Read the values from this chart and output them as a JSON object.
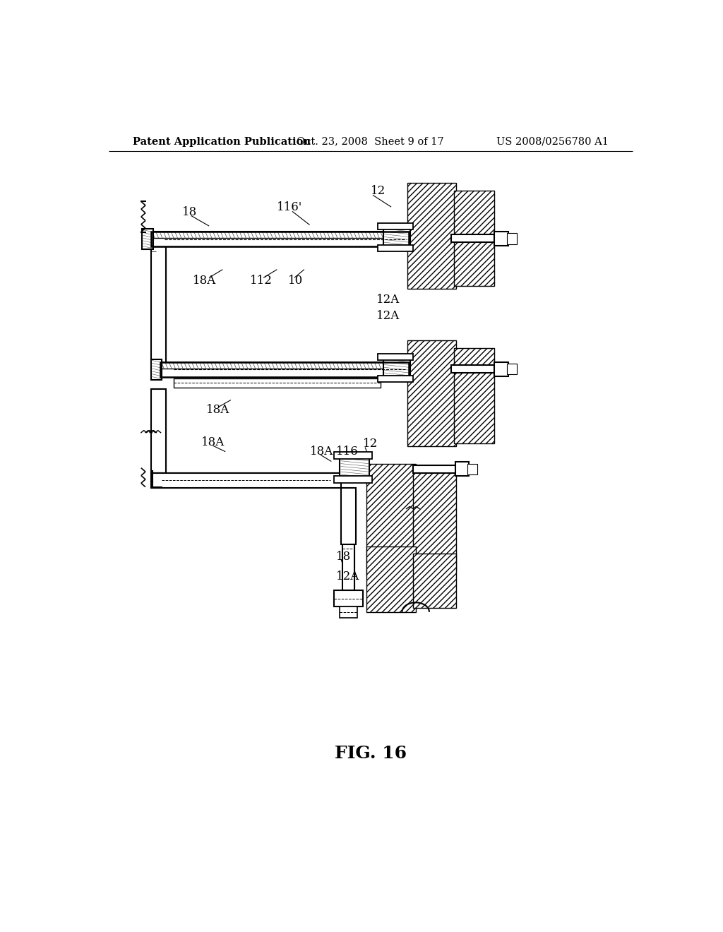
{
  "header_left": "Patent Application Publication",
  "header_center": "Oct. 23, 2008  Sheet 9 of 17",
  "header_right": "US 2008/0256780 A1",
  "figure_label": "FIG. 16",
  "bg_color": "#ffffff",
  "line_color": "#000000",
  "header_fontsize": 10.5,
  "figure_label_fontsize": 18,
  "annotation_fontsize": 12
}
